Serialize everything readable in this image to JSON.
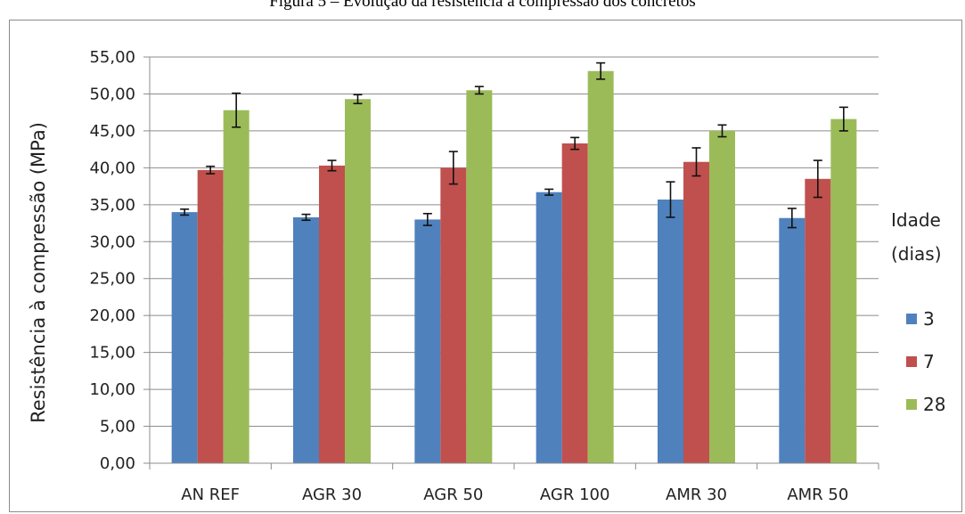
{
  "caption": "Figura 5 – Evolução da resistência à compressão dos concretos",
  "chart_data": {
    "type": "bar",
    "categories": [
      "AN REF",
      "AGR 30",
      "AGR 50",
      "AGR 100",
      "AMR 30",
      "AMR 50"
    ],
    "series": [
      {
        "name": "3",
        "color": "#4f81bd",
        "values": [
          34.0,
          33.3,
          33.0,
          36.7,
          35.7,
          33.2
        ],
        "errors": [
          0.4,
          0.4,
          0.8,
          0.4,
          2.4,
          1.3
        ]
      },
      {
        "name": "7",
        "color": "#c0504d",
        "values": [
          39.7,
          40.3,
          40.0,
          43.3,
          40.8,
          38.5
        ],
        "errors": [
          0.5,
          0.7,
          2.2,
          0.8,
          1.9,
          2.5
        ]
      },
      {
        "name": "28",
        "color": "#9bbb59",
        "values": [
          47.8,
          49.3,
          50.5,
          53.1,
          45.0,
          46.6
        ],
        "errors": [
          2.3,
          0.6,
          0.5,
          1.1,
          0.8,
          1.6
        ]
      }
    ],
    "ylabel": "Resistência à compressão (MPa)",
    "ylim": [
      0,
      55
    ],
    "yticks": [
      "0,00",
      "5,00",
      "10,00",
      "15,00",
      "20,00",
      "25,00",
      "30,00",
      "35,00",
      "40,00",
      "45,00",
      "50,00",
      "55,00"
    ],
    "legend_title": [
      "Idade",
      "(dias)"
    ],
    "legend_position": "right",
    "grid": true
  }
}
